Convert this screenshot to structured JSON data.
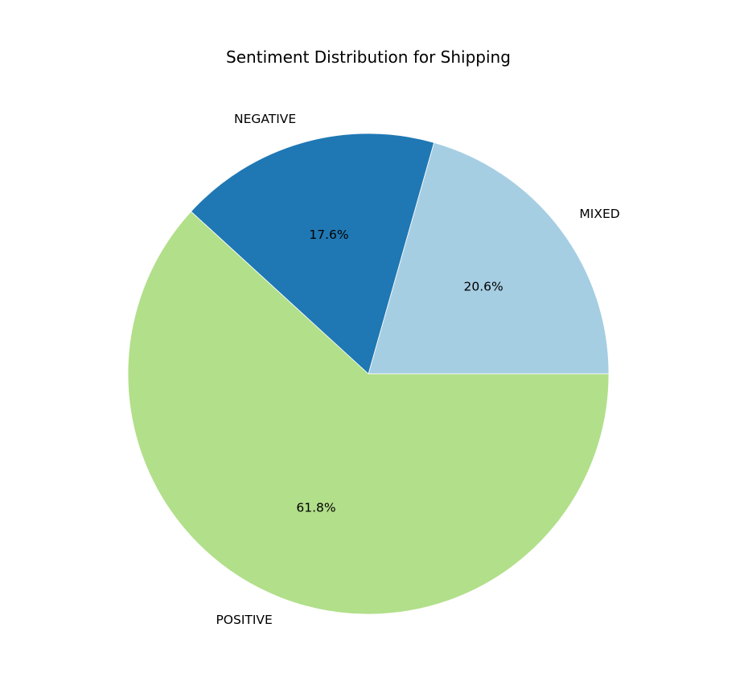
{
  "chart_data": {
    "type": "pie",
    "title": "Sentiment Distribution for Shipping",
    "categories": [
      "MIXED",
      "NEGATIVE",
      "POSITIVE"
    ],
    "values": [
      20.6,
      17.6,
      61.8
    ],
    "value_labels": [
      "20.6%",
      "17.6%",
      "61.8%"
    ],
    "colors": [
      "#a6cee3",
      "#1f78b4",
      "#b2df8a"
    ],
    "start_angle_deg": 0,
    "direction": "counterclockwise",
    "legend": "none"
  }
}
